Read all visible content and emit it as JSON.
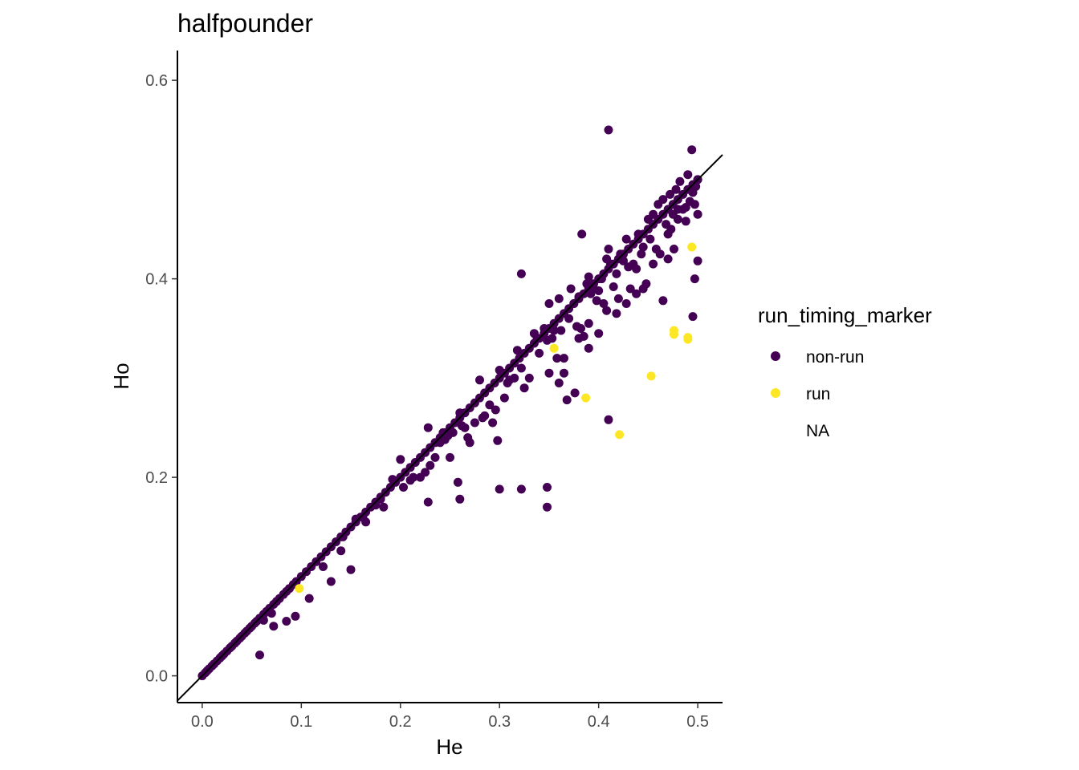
{
  "chart_data": {
    "type": "scatter",
    "title": "halfpounder",
    "xlabel": "He",
    "ylabel": "Ho",
    "xlim": [
      -0.025,
      0.525
    ],
    "ylim": [
      -0.027,
      0.63
    ],
    "x_ticks": [
      "0.0",
      "0.1",
      "0.2",
      "0.3",
      "0.4",
      "0.5"
    ],
    "y_ticks": [
      "0.0",
      "0.2",
      "0.4",
      "0.6"
    ],
    "grid": false,
    "reference_line": {
      "type": "identity",
      "slope": 1,
      "intercept": 0
    },
    "legend": {
      "title": "run_timing_marker",
      "position": "right",
      "entries": [
        {
          "label": "non-run",
          "color": "#440154"
        },
        {
          "label": "run",
          "color": "#FDE725"
        },
        {
          "label": "NA",
          "color": "none"
        }
      ]
    },
    "series": [
      {
        "name": "non-run",
        "color": "#440154",
        "points": [
          [
            0,
            0
          ],
          [
            0.003,
            0.003
          ],
          [
            0.005,
            0.005
          ],
          [
            0.007,
            0.007
          ],
          [
            0.01,
            0.01
          ],
          [
            0.012,
            0.012
          ],
          [
            0.015,
            0.015
          ],
          [
            0.018,
            0.018
          ],
          [
            0.02,
            0.02
          ],
          [
            0.022,
            0.022
          ],
          [
            0.025,
            0.025
          ],
          [
            0.028,
            0.028
          ],
          [
            0.03,
            0.03
          ],
          [
            0.033,
            0.033
          ],
          [
            0.035,
            0.035
          ],
          [
            0.038,
            0.038
          ],
          [
            0.04,
            0.04
          ],
          [
            0.043,
            0.043
          ],
          [
            0.045,
            0.045
          ],
          [
            0.048,
            0.048
          ],
          [
            0.05,
            0.05
          ],
          [
            0.053,
            0.053
          ],
          [
            0.055,
            0.055
          ],
          [
            0.058,
            0.058
          ],
          [
            0.062,
            0.062
          ],
          [
            0.065,
            0.065
          ],
          [
            0.068,
            0.068
          ],
          [
            0.072,
            0.072
          ],
          [
            0.075,
            0.075
          ],
          [
            0.078,
            0.078
          ],
          [
            0.082,
            0.082
          ],
          [
            0.085,
            0.085
          ],
          [
            0.088,
            0.088
          ],
          [
            0.092,
            0.092
          ],
          [
            0.095,
            0.095
          ],
          [
            0.1,
            0.1
          ],
          [
            0.105,
            0.105
          ],
          [
            0.11,
            0.11
          ],
          [
            0.115,
            0.115
          ],
          [
            0.12,
            0.12
          ],
          [
            0.125,
            0.125
          ],
          [
            0.13,
            0.13
          ],
          [
            0.135,
            0.135
          ],
          [
            0.14,
            0.14
          ],
          [
            0.145,
            0.145
          ],
          [
            0.15,
            0.15
          ],
          [
            0.155,
            0.155
          ],
          [
            0.16,
            0.16
          ],
          [
            0.165,
            0.165
          ],
          [
            0.17,
            0.17
          ],
          [
            0.175,
            0.175
          ],
          [
            0.18,
            0.18
          ],
          [
            0.185,
            0.185
          ],
          [
            0.19,
            0.19
          ],
          [
            0.195,
            0.195
          ],
          [
            0.2,
            0.2
          ],
          [
            0.205,
            0.205
          ],
          [
            0.21,
            0.21
          ],
          [
            0.215,
            0.215
          ],
          [
            0.22,
            0.22
          ],
          [
            0.225,
            0.225
          ],
          [
            0.23,
            0.23
          ],
          [
            0.235,
            0.235
          ],
          [
            0.24,
            0.24
          ],
          [
            0.245,
            0.245
          ],
          [
            0.25,
            0.25
          ],
          [
            0.255,
            0.255
          ],
          [
            0.26,
            0.26
          ],
          [
            0.265,
            0.265
          ],
          [
            0.27,
            0.27
          ],
          [
            0.275,
            0.275
          ],
          [
            0.28,
            0.28
          ],
          [
            0.285,
            0.285
          ],
          [
            0.29,
            0.29
          ],
          [
            0.295,
            0.295
          ],
          [
            0.3,
            0.3
          ],
          [
            0.305,
            0.305
          ],
          [
            0.31,
            0.31
          ],
          [
            0.315,
            0.315
          ],
          [
            0.32,
            0.32
          ],
          [
            0.325,
            0.325
          ],
          [
            0.33,
            0.33
          ],
          [
            0.335,
            0.335
          ],
          [
            0.34,
            0.34
          ],
          [
            0.345,
            0.345
          ],
          [
            0.35,
            0.35
          ],
          [
            0.355,
            0.355
          ],
          [
            0.36,
            0.36
          ],
          [
            0.365,
            0.365
          ],
          [
            0.37,
            0.37
          ],
          [
            0.375,
            0.375
          ],
          [
            0.38,
            0.38
          ],
          [
            0.385,
            0.385
          ],
          [
            0.39,
            0.39
          ],
          [
            0.395,
            0.395
          ],
          [
            0.4,
            0.4
          ],
          [
            0.405,
            0.405
          ],
          [
            0.41,
            0.41
          ],
          [
            0.415,
            0.415
          ],
          [
            0.42,
            0.42
          ],
          [
            0.425,
            0.425
          ],
          [
            0.43,
            0.43
          ],
          [
            0.435,
            0.435
          ],
          [
            0.44,
            0.44
          ],
          [
            0.445,
            0.445
          ],
          [
            0.45,
            0.45
          ],
          [
            0.455,
            0.455
          ],
          [
            0.46,
            0.46
          ],
          [
            0.465,
            0.465
          ],
          [
            0.47,
            0.47
          ],
          [
            0.475,
            0.475
          ],
          [
            0.48,
            0.48
          ],
          [
            0.485,
            0.485
          ],
          [
            0.49,
            0.49
          ],
          [
            0.495,
            0.495
          ],
          [
            0.5,
            0.5
          ],
          [
            0.062,
            0.056
          ],
          [
            0.058,
            0.021
          ],
          [
            0.07,
            0.063
          ],
          [
            0.072,
            0.05
          ],
          [
            0.085,
            0.055
          ],
          [
            0.094,
            0.06
          ],
          [
            0.108,
            0.078
          ],
          [
            0.122,
            0.11
          ],
          [
            0.13,
            0.095
          ],
          [
            0.14,
            0.126
          ],
          [
            0.142,
            0.14
          ],
          [
            0.15,
            0.107
          ],
          [
            0.155,
            0.158
          ],
          [
            0.162,
            0.16
          ],
          [
            0.165,
            0.155
          ],
          [
            0.175,
            0.172
          ],
          [
            0.18,
            0.178
          ],
          [
            0.183,
            0.17
          ],
          [
            0.192,
            0.198
          ],
          [
            0.2,
            0.218
          ],
          [
            0.203,
            0.19
          ],
          [
            0.21,
            0.197
          ],
          [
            0.213,
            0.2
          ],
          [
            0.22,
            0.2
          ],
          [
            0.225,
            0.205
          ],
          [
            0.228,
            0.25
          ],
          [
            0.23,
            0.212
          ],
          [
            0.235,
            0.22
          ],
          [
            0.24,
            0.235
          ],
          [
            0.243,
            0.245
          ],
          [
            0.245,
            0.238
          ],
          [
            0.248,
            0.242
          ],
          [
            0.25,
            0.22
          ],
          [
            0.253,
            0.245
          ],
          [
            0.26,
            0.265
          ],
          [
            0.262,
            0.252
          ],
          [
            0.265,
            0.25
          ],
          [
            0.268,
            0.24
          ],
          [
            0.27,
            0.235
          ],
          [
            0.275,
            0.255
          ],
          [
            0.28,
            0.298
          ],
          [
            0.283,
            0.26
          ],
          [
            0.285,
            0.262
          ],
          [
            0.29,
            0.273
          ],
          [
            0.293,
            0.255
          ],
          [
            0.296,
            0.268
          ],
          [
            0.298,
            0.237
          ],
          [
            0.3,
            0.308
          ],
          [
            0.305,
            0.28
          ],
          [
            0.308,
            0.295
          ],
          [
            0.31,
            0.298
          ],
          [
            0.315,
            0.3
          ],
          [
            0.318,
            0.328
          ],
          [
            0.322,
            0.31
          ],
          [
            0.325,
            0.29
          ],
          [
            0.33,
            0.3
          ],
          [
            0.335,
            0.345
          ],
          [
            0.338,
            0.34
          ],
          [
            0.34,
            0.325
          ],
          [
            0.345,
            0.35
          ],
          [
            0.348,
            0.338
          ],
          [
            0.35,
            0.375
          ],
          [
            0.353,
            0.34
          ],
          [
            0.355,
            0.348
          ],
          [
            0.358,
            0.32
          ],
          [
            0.36,
            0.38
          ],
          [
            0.362,
            0.348
          ],
          [
            0.365,
            0.305
          ],
          [
            0.37,
            0.36
          ],
          [
            0.372,
            0.39
          ],
          [
            0.375,
            0.375
          ],
          [
            0.378,
            0.352
          ],
          [
            0.38,
            0.382
          ],
          [
            0.382,
            0.35
          ],
          [
            0.385,
            0.342
          ],
          [
            0.388,
            0.395
          ],
          [
            0.39,
            0.402
          ],
          [
            0.392,
            0.385
          ],
          [
            0.395,
            0.39
          ],
          [
            0.398,
            0.378
          ],
          [
            0.4,
            0.388
          ],
          [
            0.403,
            0.4
          ],
          [
            0.405,
            0.375
          ],
          [
            0.408,
            0.42
          ],
          [
            0.41,
            0.43
          ],
          [
            0.412,
            0.415
          ],
          [
            0.415,
            0.392
          ],
          [
            0.418,
            0.405
          ],
          [
            0.42,
            0.38
          ],
          [
            0.422,
            0.425
          ],
          [
            0.425,
            0.418
          ],
          [
            0.428,
            0.44
          ],
          [
            0.43,
            0.412
          ],
          [
            0.432,
            0.39
          ],
          [
            0.435,
            0.415
          ],
          [
            0.438,
            0.41
          ],
          [
            0.44,
            0.445
          ],
          [
            0.443,
            0.425
          ],
          [
            0.445,
            0.432
          ],
          [
            0.448,
            0.395
          ],
          [
            0.45,
            0.46
          ],
          [
            0.452,
            0.44
          ],
          [
            0.455,
            0.465
          ],
          [
            0.458,
            0.43
          ],
          [
            0.46,
            0.475
          ],
          [
            0.462,
            0.425
          ],
          [
            0.465,
            0.48
          ],
          [
            0.468,
            0.455
          ],
          [
            0.47,
            0.445
          ],
          [
            0.472,
            0.485
          ],
          [
            0.475,
            0.465
          ],
          [
            0.478,
            0.49
          ],
          [
            0.48,
            0.46
          ],
          [
            0.482,
            0.498
          ],
          [
            0.485,
            0.47
          ],
          [
            0.488,
            0.472
          ],
          [
            0.49,
            0.505
          ],
          [
            0.492,
            0.478
          ],
          [
            0.494,
            0.53
          ],
          [
            0.495,
            0.487
          ],
          [
            0.497,
            0.475
          ],
          [
            0.498,
            0.493
          ],
          [
            0.5,
            0.5
          ],
          [
            0.5,
            0.465
          ],
          [
            0.5,
            0.418
          ],
          [
            0.497,
            0.4
          ],
          [
            0.495,
            0.362
          ],
          [
            0.488,
            0.458
          ],
          [
            0.48,
            0.47
          ],
          [
            0.476,
            0.43
          ],
          [
            0.473,
            0.45
          ],
          [
            0.47,
            0.42
          ],
          [
            0.465,
            0.378
          ],
          [
            0.455,
            0.415
          ],
          [
            0.445,
            0.39
          ],
          [
            0.438,
            0.385
          ],
          [
            0.428,
            0.375
          ],
          [
            0.418,
            0.365
          ],
          [
            0.408,
            0.368
          ],
          [
            0.4,
            0.345
          ],
          [
            0.39,
            0.355
          ],
          [
            0.38,
            0.34
          ],
          [
            0.376,
            0.285
          ],
          [
            0.368,
            0.278
          ],
          [
            0.36,
            0.295
          ],
          [
            0.35,
            0.305
          ],
          [
            0.348,
            0.19
          ],
          [
            0.348,
            0.17
          ],
          [
            0.322,
            0.188
          ],
          [
            0.3,
            0.188
          ],
          [
            0.26,
            0.178
          ],
          [
            0.258,
            0.195
          ],
          [
            0.228,
            0.175
          ],
          [
            0.41,
            0.55
          ],
          [
            0.383,
            0.445
          ],
          [
            0.322,
            0.405
          ],
          [
            0.41,
            0.258
          ],
          [
            0.365,
            0.32
          ],
          [
            0.39,
            0.33
          ]
        ]
      },
      {
        "name": "run",
        "color": "#FDE725",
        "points": [
          [
            0.098,
            0.088
          ],
          [
            0.355,
            0.33
          ],
          [
            0.387,
            0.28
          ],
          [
            0.421,
            0.243
          ],
          [
            0.453,
            0.302
          ],
          [
            0.476,
            0.348
          ],
          [
            0.476,
            0.344
          ],
          [
            0.49,
            0.341
          ],
          [
            0.49,
            0.339
          ],
          [
            0.494,
            0.432
          ]
        ]
      }
    ]
  }
}
